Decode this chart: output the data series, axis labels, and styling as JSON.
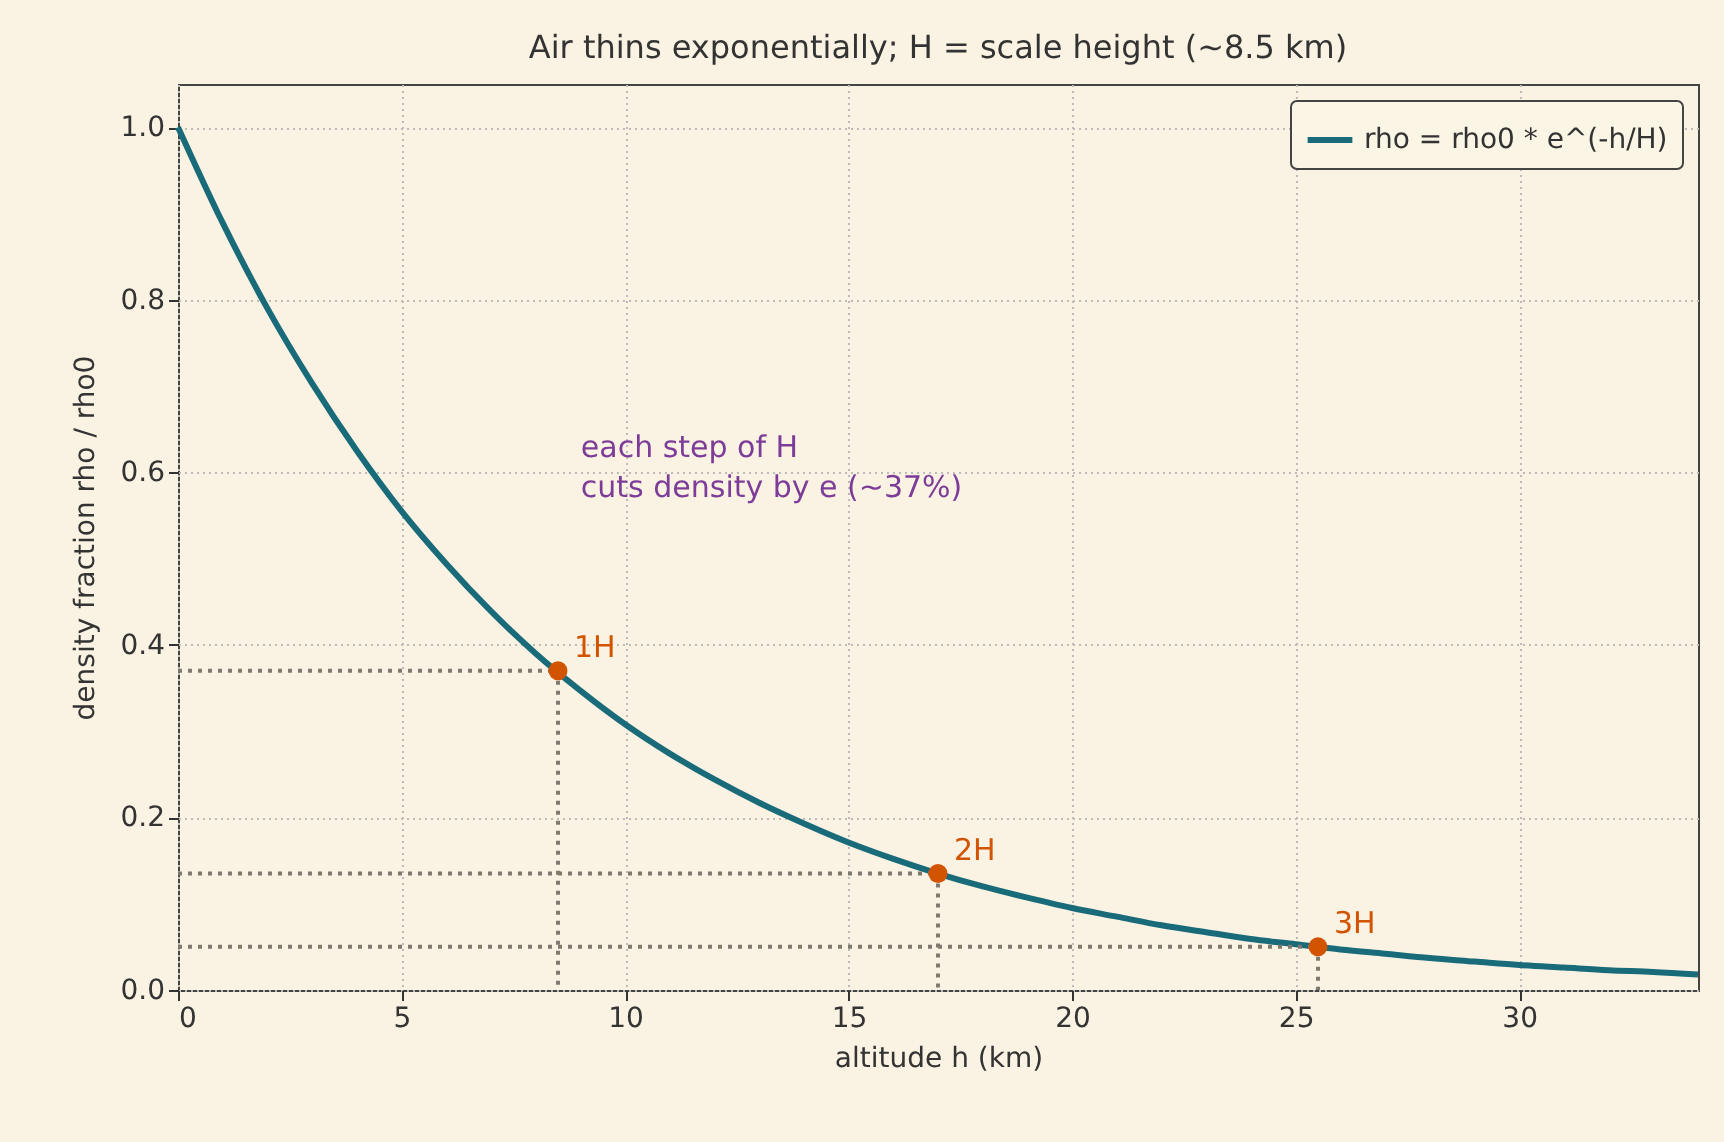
{
  "chart_data": {
    "type": "line",
    "title": "Air thins exponentially; H = scale height (~8.5 km)",
    "xlabel": "altitude h (km)",
    "ylabel": "density fraction rho / rho0",
    "xlim": [
      0,
      34
    ],
    "xticks": [
      0,
      5,
      10,
      15,
      20,
      25,
      30
    ],
    "ylim": [
      0,
      1.05
    ],
    "yticks": [
      {
        "value": 0,
        "label": "0.0"
      },
      0.2,
      0.4,
      0.6,
      0.8,
      {
        "value": 1,
        "label": "1.0"
      }
    ],
    "grid": true,
    "legend": "top right",
    "series": [
      {
        "name": "rho = rho0 * e^(-h/H)",
        "color": "#1a6b7a",
        "x": [
          0,
          1,
          2,
          3,
          4,
          5,
          6,
          7,
          8,
          9,
          10,
          11,
          12,
          13,
          14,
          15,
          16,
          17,
          18,
          19,
          20,
          21,
          22,
          23,
          24,
          25,
          26,
          27,
          28,
          29,
          30,
          31,
          32,
          33,
          34
        ],
        "values": [
          1.0,
          0.889,
          0.79,
          0.703,
          0.625,
          0.555,
          0.494,
          0.439,
          0.39,
          0.347,
          0.308,
          0.274,
          0.244,
          0.217,
          0.193,
          0.171,
          0.152,
          0.135,
          0.12,
          0.107,
          0.095,
          0.085,
          0.075,
          0.067,
          0.059,
          0.053,
          0.047,
          0.042,
          0.037,
          0.033,
          0.029,
          0.026,
          0.023,
          0.021,
          0.018
        ]
      },
      {
        "type": "line",
        "line_style": "dotted",
        "color": "#7f7a70",
        "x": [
          0,
          8.5,
          8.5
        ],
        "values": [
          0.37,
          0.37,
          0
        ]
      },
      {
        "type": "line",
        "line_style": "dotted",
        "color": "#7f7a70",
        "x": [
          0,
          17,
          17
        ],
        "values": [
          0.135,
          0.135,
          0
        ]
      },
      {
        "type": "line",
        "line_style": "dotted",
        "color": "#7f7a70",
        "x": [
          0,
          25.5,
          25.5
        ],
        "values": [
          0.05,
          0.05,
          0
        ]
      },
      {
        "type": "scatter",
        "marker": "circle",
        "color": "#d35400",
        "x": [
          8.5,
          17,
          25.5
        ],
        "values": [
          0.37,
          0.135,
          0.05
        ]
      }
    ],
    "annotations": [
      "each step of H\ncuts density by e (~37%)",
      {
        "text": "1H",
        "x": 8.5,
        "y": 0.37
      },
      {
        "text": "2H",
        "x": 17,
        "y": 0.135
      },
      {
        "text": "3H",
        "x": 25.5,
        "y": 0.05
      }
    ]
  }
}
